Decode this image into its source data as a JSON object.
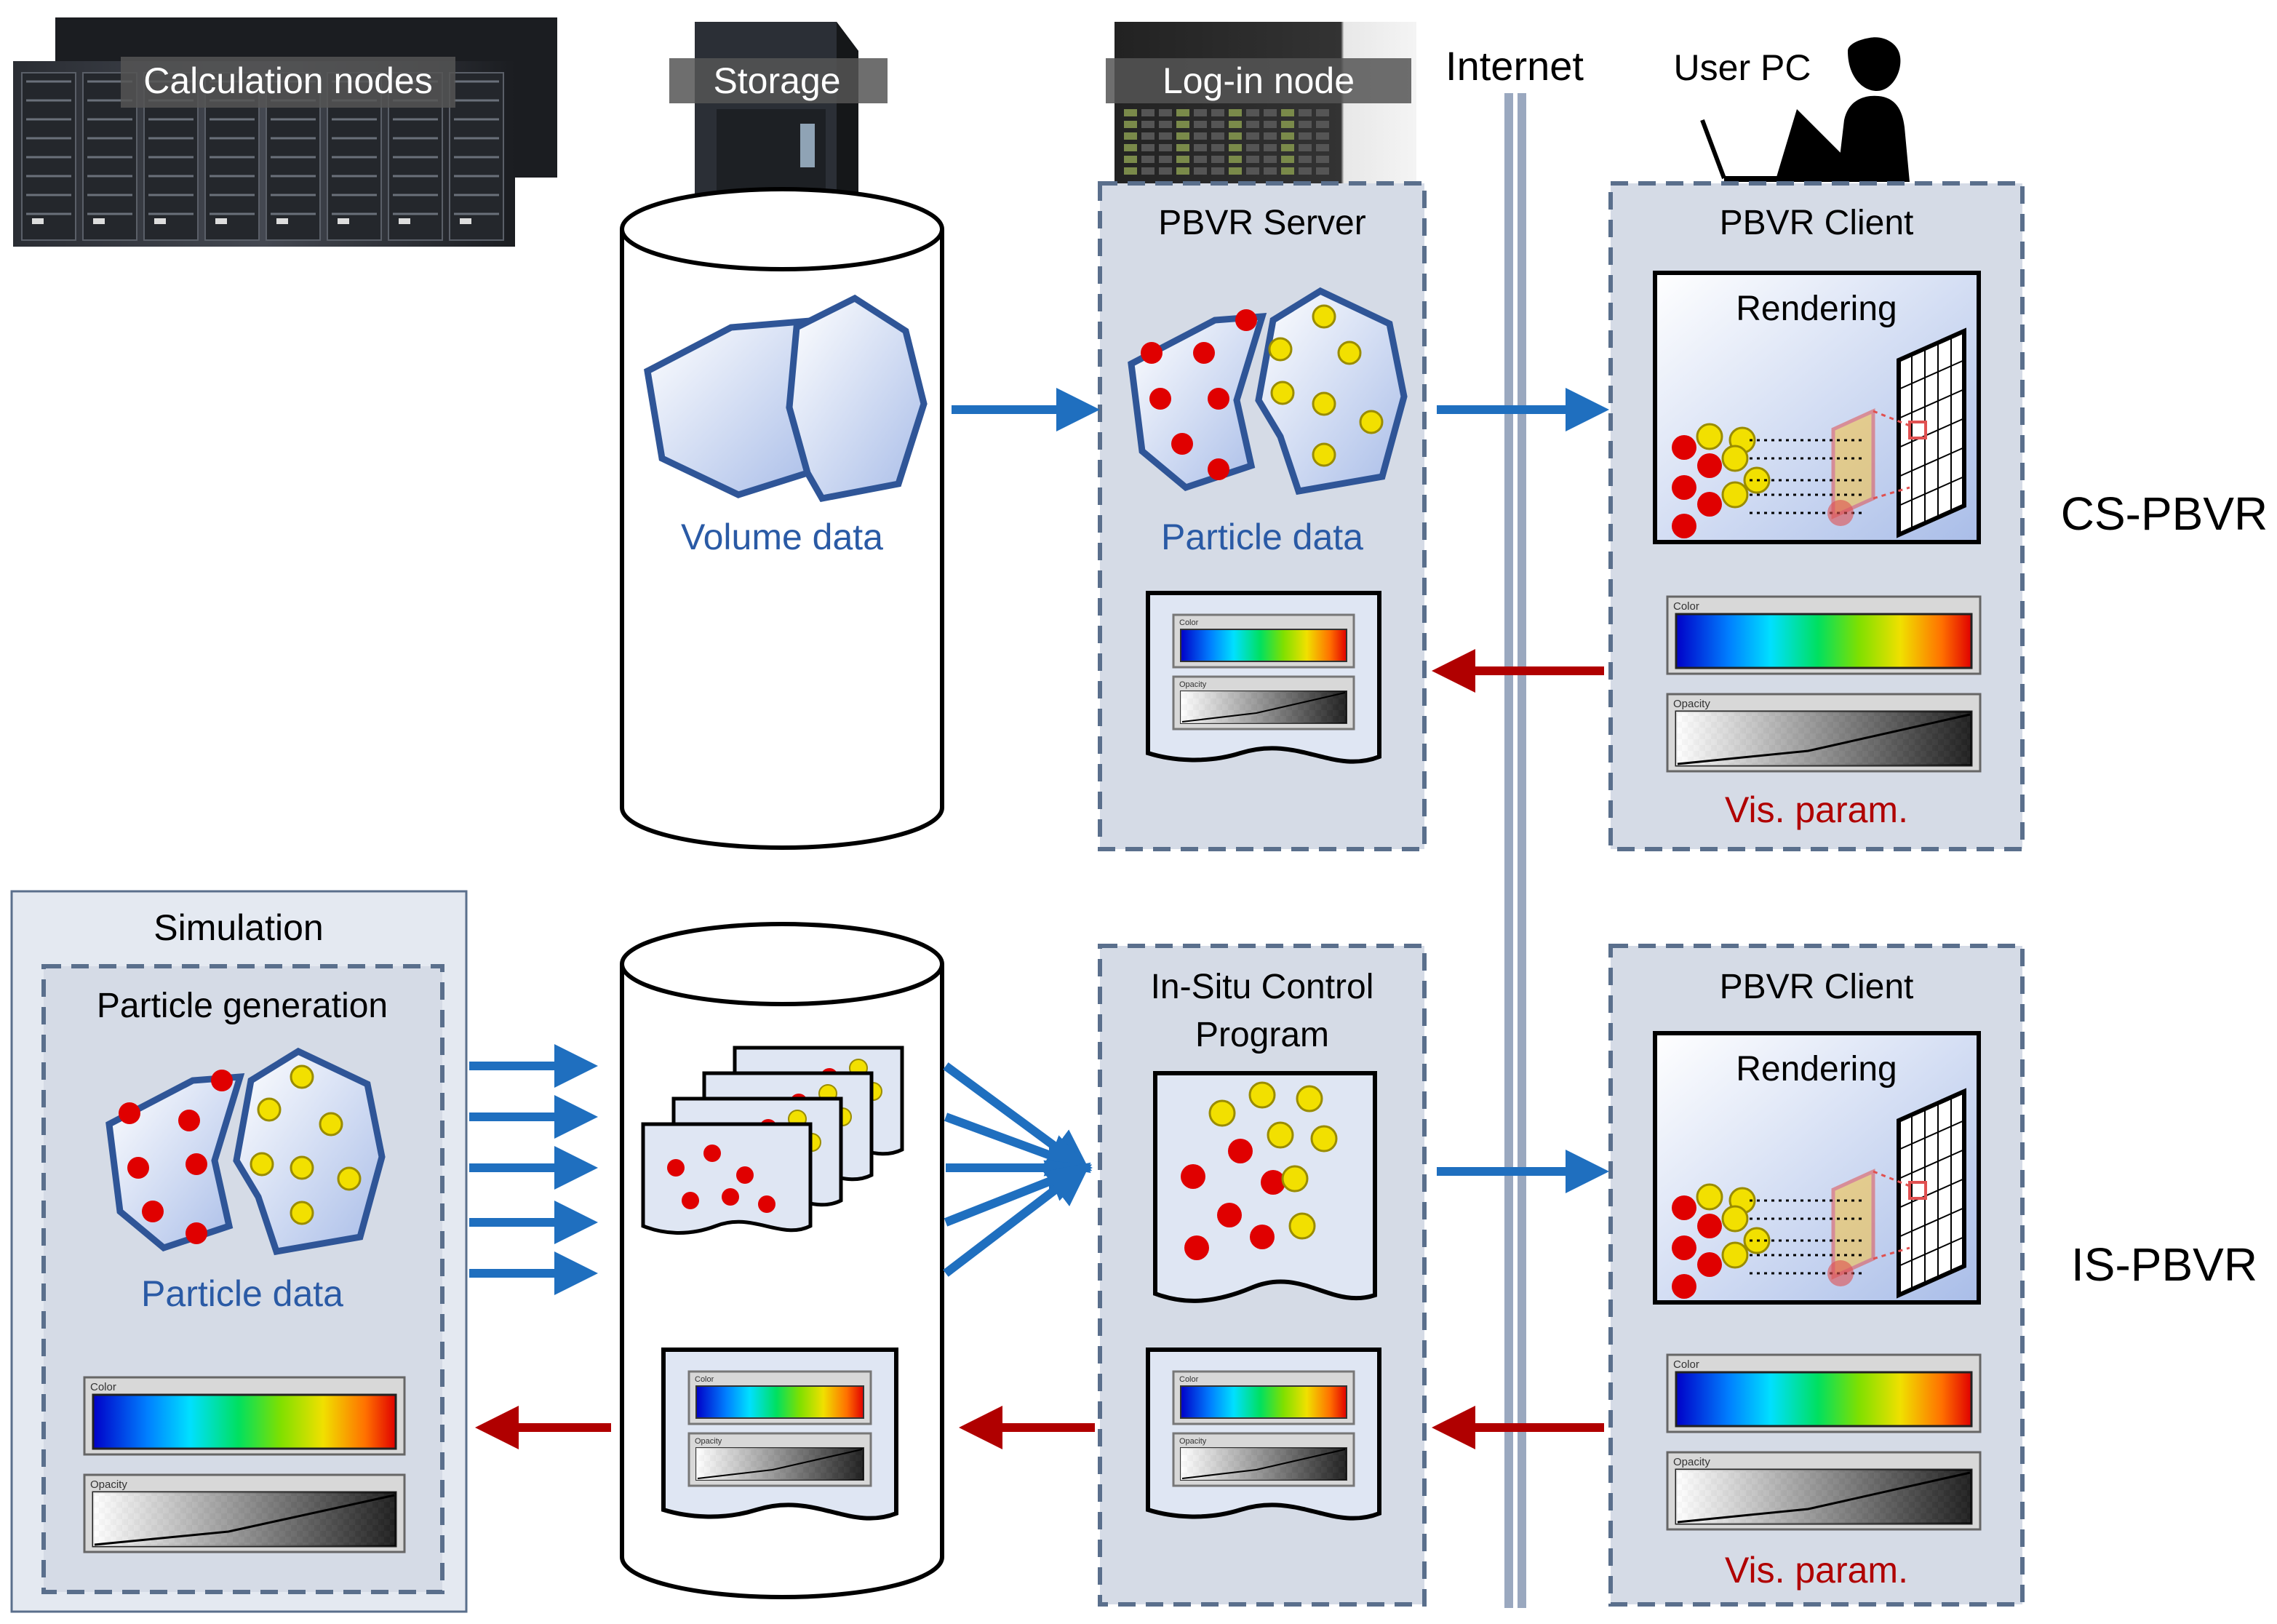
{
  "colors": {
    "blue_arrow": "#1f6fbf",
    "red_arrow": "#b00000",
    "panel_fill": "#d5dbe6",
    "panel_dash": "#5a6f8c",
    "label_blue": "#2a5aa5",
    "label_red": "#b00000",
    "particle_red": "#e00000",
    "particle_yellow": "#f2e000",
    "polyhedron_stroke": "#2f5597",
    "polyhedron_fill": "#c4d4ee"
  },
  "top_labels": {
    "calc_nodes": "Calculation nodes",
    "storage": "Storage",
    "login_node": "Log-in node",
    "internet": "Internet",
    "user_pc": "User PC"
  },
  "cs_row": {
    "storage_label": "Volume data",
    "server_title": "PBVR Server",
    "server_particles": "Particle data",
    "client_title": "PBVR Client",
    "client_rendering": "Rendering",
    "vis_param": "Vis. param.",
    "row_label": "CS-PBVR"
  },
  "is_row": {
    "simulation_title": "Simulation",
    "particle_generation": "Particle generation",
    "sim_particles": "Particle data",
    "control_title_line1": "In-Situ Control",
    "control_title_line2": "Program",
    "client_title": "PBVR Client",
    "client_rendering": "Rendering",
    "vis_param": "Vis. param.",
    "row_label": "IS-PBVR"
  },
  "tf_panel": {
    "color_label": "Color",
    "opacity_label": "Opacity"
  }
}
